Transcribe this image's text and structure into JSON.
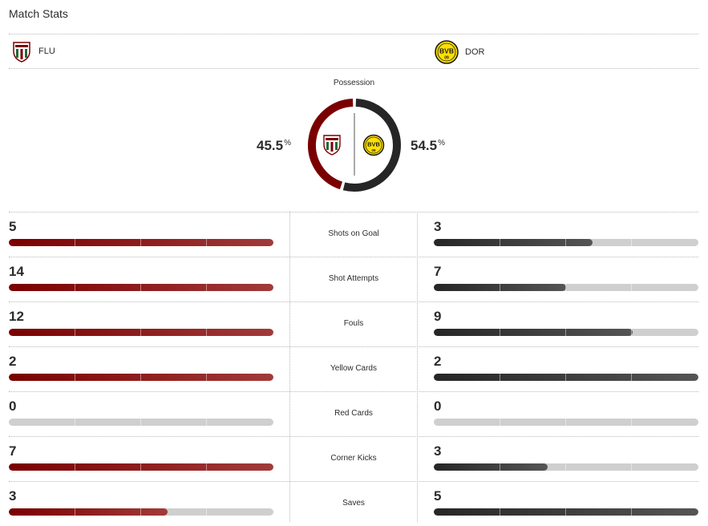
{
  "title": "Match Stats",
  "teams": {
    "home": {
      "abbr": "FLU",
      "color": "#7a0000"
    },
    "away": {
      "abbr": "DOR",
      "color": "#2a2a2a",
      "crest_text": "BVB",
      "crest_num": "09",
      "crest_color": "#ffe000"
    }
  },
  "possession": {
    "label": "Possession",
    "home": {
      "value": "45.5",
      "unit": "%"
    },
    "away": {
      "value": "54.5",
      "unit": "%"
    },
    "home_fraction": 0.455
  },
  "stats": [
    {
      "label": "Shots on Goal",
      "home": "5",
      "away": "3",
      "home_fill": 1.0,
      "away_fill": 0.6
    },
    {
      "label": "Shot Attempts",
      "home": "14",
      "away": "7",
      "home_fill": 1.0,
      "away_fill": 0.5
    },
    {
      "label": "Fouls",
      "home": "12",
      "away": "9",
      "home_fill": 1.0,
      "away_fill": 0.75
    },
    {
      "label": "Yellow Cards",
      "home": "2",
      "away": "2",
      "home_fill": 1.0,
      "away_fill": 1.0
    },
    {
      "label": "Red Cards",
      "home": "0",
      "away": "0",
      "home_fill": 0,
      "away_fill": 0
    },
    {
      "label": "Corner Kicks",
      "home": "7",
      "away": "3",
      "home_fill": 1.0,
      "away_fill": 0.43
    },
    {
      "label": "Saves",
      "home": "3",
      "away": "5",
      "home_fill": 0.6,
      "away_fill": 1.0
    }
  ]
}
